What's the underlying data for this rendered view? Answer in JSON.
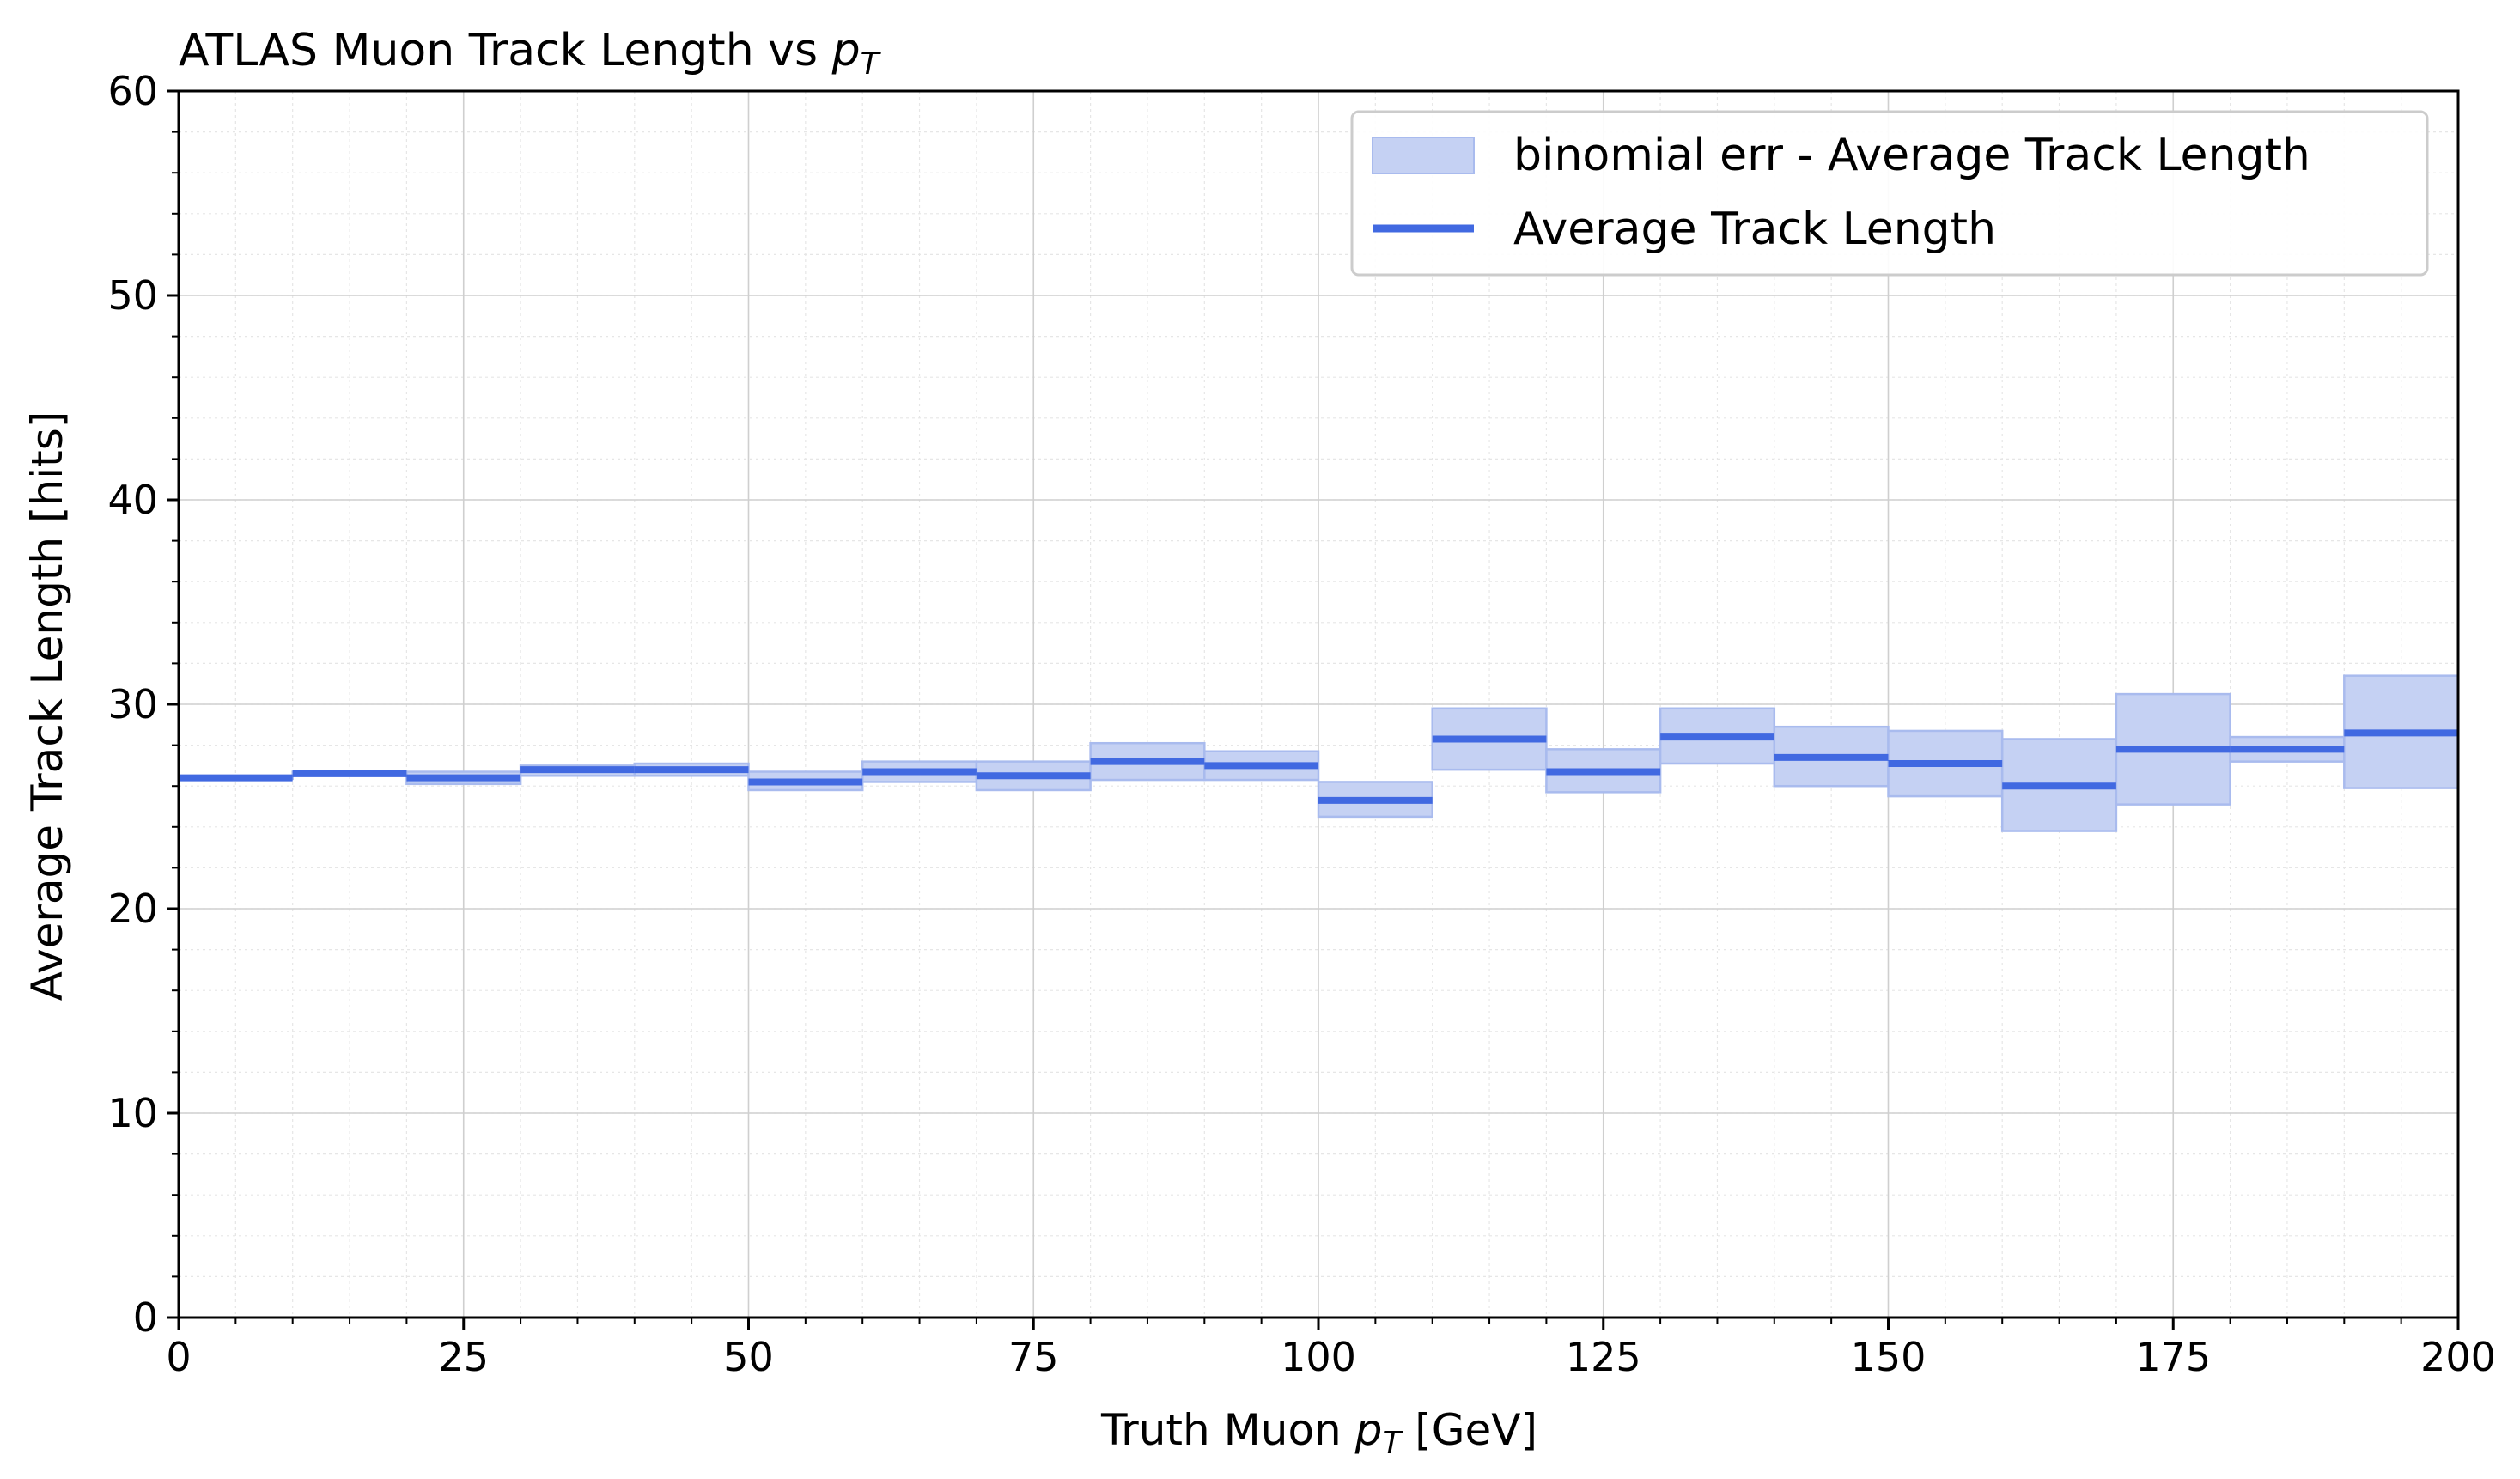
{
  "chart_data": {
    "type": "step-errorband",
    "title": "ATLAS Muon Track Length vs ",
    "title_math": "p",
    "title_math_sub": "T",
    "xlabel_prefix": "Truth Muon ",
    "xlabel_math": "p",
    "xlabel_math_sub": "T",
    "xlabel_suffix": " [GeV]",
    "ylabel": "Average Track Length [hits]",
    "xlim": [
      0,
      200
    ],
    "ylim": [
      0,
      60
    ],
    "xticks": [
      "0",
      "25",
      "50",
      "75",
      "100",
      "125",
      "150",
      "175",
      "200"
    ],
    "yticks": [
      "0",
      "10",
      "20",
      "30",
      "40",
      "50",
      "60"
    ],
    "grid": true,
    "legend_position": "top-right",
    "legend": {
      "band_label": "binomial err - Average Track Length",
      "line_label": "Average Track Length"
    },
    "colors": {
      "line": "#4169e1",
      "band_fill": "#c5d1f3",
      "band_edge": "#a9bbee"
    },
    "bins": [
      {
        "x0": 0,
        "x1": 10,
        "value": 26.4,
        "err_low": 26.35,
        "err_high": 26.45
      },
      {
        "x0": 10,
        "x1": 20,
        "value": 26.6,
        "err_low": 26.5,
        "err_high": 26.7
      },
      {
        "x0": 20,
        "x1": 30,
        "value": 26.4,
        "err_low": 26.1,
        "err_high": 26.7
      },
      {
        "x0": 30,
        "x1": 40,
        "value": 26.8,
        "err_low": 26.5,
        "err_high": 27.0
      },
      {
        "x0": 40,
        "x1": 50,
        "value": 26.8,
        "err_low": 26.5,
        "err_high": 27.1
      },
      {
        "x0": 50,
        "x1": 60,
        "value": 26.2,
        "err_low": 25.8,
        "err_high": 26.7
      },
      {
        "x0": 60,
        "x1": 70,
        "value": 26.7,
        "err_low": 26.2,
        "err_high": 27.2
      },
      {
        "x0": 70,
        "x1": 80,
        "value": 26.5,
        "err_low": 25.8,
        "err_high": 27.2
      },
      {
        "x0": 80,
        "x1": 90,
        "value": 27.2,
        "err_low": 26.3,
        "err_high": 28.1
      },
      {
        "x0": 90,
        "x1": 100,
        "value": 27.0,
        "err_low": 26.3,
        "err_high": 27.7
      },
      {
        "x0": 100,
        "x1": 110,
        "value": 25.3,
        "err_low": 24.5,
        "err_high": 26.2
      },
      {
        "x0": 110,
        "x1": 120,
        "value": 28.3,
        "err_low": 26.8,
        "err_high": 29.8
      },
      {
        "x0": 120,
        "x1": 130,
        "value": 26.7,
        "err_low": 25.7,
        "err_high": 27.8
      },
      {
        "x0": 130,
        "x1": 140,
        "value": 28.4,
        "err_low": 27.1,
        "err_high": 29.8
      },
      {
        "x0": 140,
        "x1": 150,
        "value": 27.4,
        "err_low": 26.0,
        "err_high": 28.9
      },
      {
        "x0": 150,
        "x1": 160,
        "value": 27.1,
        "err_low": 25.5,
        "err_high": 28.7
      },
      {
        "x0": 160,
        "x1": 170,
        "value": 26.0,
        "err_low": 23.8,
        "err_high": 28.3
      },
      {
        "x0": 170,
        "x1": 180,
        "value": 27.8,
        "err_low": 25.1,
        "err_high": 30.5
      },
      {
        "x0": 180,
        "x1": 190,
        "value": 27.8,
        "err_low": 27.2,
        "err_high": 28.4
      },
      {
        "x0": 190,
        "x1": 200,
        "value": 28.6,
        "err_low": 25.9,
        "err_high": 31.4
      }
    ]
  }
}
